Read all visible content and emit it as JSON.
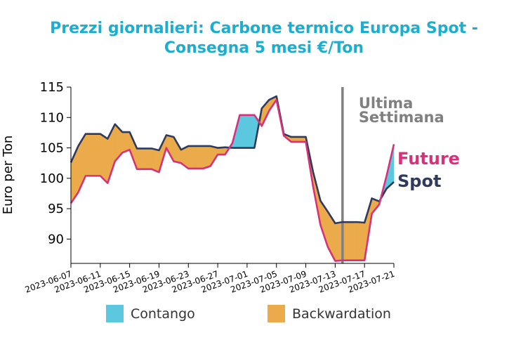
{
  "chart_data": {
    "type": "area",
    "title_lines": [
      "Prezzi giornalieri: Carbone termico Europa Spot -",
      "Consegna 5 mesi €/Ton"
    ],
    "ylabel": "Euro per Ton",
    "xlabel": "",
    "ylim": [
      86,
      115
    ],
    "yticks": [
      "115",
      "110",
      "105",
      "100",
      "95",
      "90"
    ],
    "xticks": [
      "2023-06-07",
      "2023-06-11",
      "2023-06-15",
      "2023-06-19",
      "2023-06-23",
      "2023-06-27",
      "2023-07-01",
      "2023-07-05",
      "2023-07-09",
      "2023-07-13",
      "2023-07-17",
      "2023-07-21"
    ],
    "x": [
      "2023-06-07",
      "2023-06-08",
      "2023-06-09",
      "2023-06-10",
      "2023-06-11",
      "2023-06-12",
      "2023-06-13",
      "2023-06-14",
      "2023-06-15",
      "2023-06-16",
      "2023-06-17",
      "2023-06-18",
      "2023-06-19",
      "2023-06-20",
      "2023-06-21",
      "2023-06-22",
      "2023-06-23",
      "2023-06-24",
      "2023-06-25",
      "2023-06-26",
      "2023-06-27",
      "2023-06-28",
      "2023-06-29",
      "2023-06-30",
      "2023-07-01",
      "2023-07-02",
      "2023-07-03",
      "2023-07-04",
      "2023-07-05",
      "2023-07-06",
      "2023-07-07",
      "2023-07-08",
      "2023-07-09",
      "2023-07-10",
      "2023-07-11",
      "2023-07-12",
      "2023-07-13",
      "2023-07-14",
      "2023-07-15",
      "2023-07-16",
      "2023-07-17",
      "2023-07-18",
      "2023-07-19",
      "2023-07-20",
      "2023-07-21"
    ],
    "series": [
      {
        "name": "Spot",
        "color": "#2e3b5e",
        "values": [
          102.6,
          105.3,
          107.3,
          107.3,
          107.3,
          106.5,
          108.9,
          107.6,
          107.6,
          104.9,
          104.9,
          104.9,
          104.6,
          107.1,
          106.8,
          104.7,
          105.3,
          105.3,
          105.3,
          105.3,
          105.0,
          105.1,
          105.0,
          105.0,
          105.0,
          105.0,
          111.5,
          112.9,
          113.5,
          107.3,
          106.8,
          106.8,
          106.8,
          101.0,
          96.3,
          94.5,
          92.6,
          92.8,
          92.8,
          92.8,
          92.7,
          96.7,
          96.2,
          98.3,
          99.4
        ]
      },
      {
        "name": "Future",
        "color": "#d63179",
        "values": [
          95.9,
          97.7,
          100.4,
          100.4,
          100.4,
          99.2,
          102.8,
          104.2,
          104.7,
          101.5,
          101.5,
          101.5,
          101.0,
          105.0,
          102.8,
          102.5,
          101.6,
          101.6,
          101.6,
          102.0,
          103.9,
          103.9,
          105.8,
          110.4,
          110.4,
          110.4,
          108.6,
          111.1,
          112.9,
          107.0,
          106.0,
          106.0,
          106.0,
          98.6,
          92.3,
          88.7,
          86.4,
          86.5,
          86.5,
          86.5,
          86.5,
          94.2,
          95.7,
          100.4,
          105.6
        ]
      }
    ],
    "fill_colors": {
      "contango": "#5bc8e0",
      "backwardation": "#ebab4a"
    },
    "legend": {
      "position": "bottom",
      "items": [
        {
          "label": "Contango",
          "color": "#5bc8e0"
        },
        {
          "label": "Backwardation",
          "color": "#ebab4a"
        }
      ]
    },
    "vline": {
      "x": "2023-07-14",
      "color": "#808080",
      "label_lines": [
        "Ultima",
        "Settimana"
      ]
    },
    "end_labels": [
      {
        "series": "Future",
        "text": "Future",
        "color": "#d63179"
      },
      {
        "series": "Spot",
        "text": "Spot",
        "color": "#2e3b5e"
      }
    ],
    "title_color": "#1aaed1",
    "grid": false
  }
}
